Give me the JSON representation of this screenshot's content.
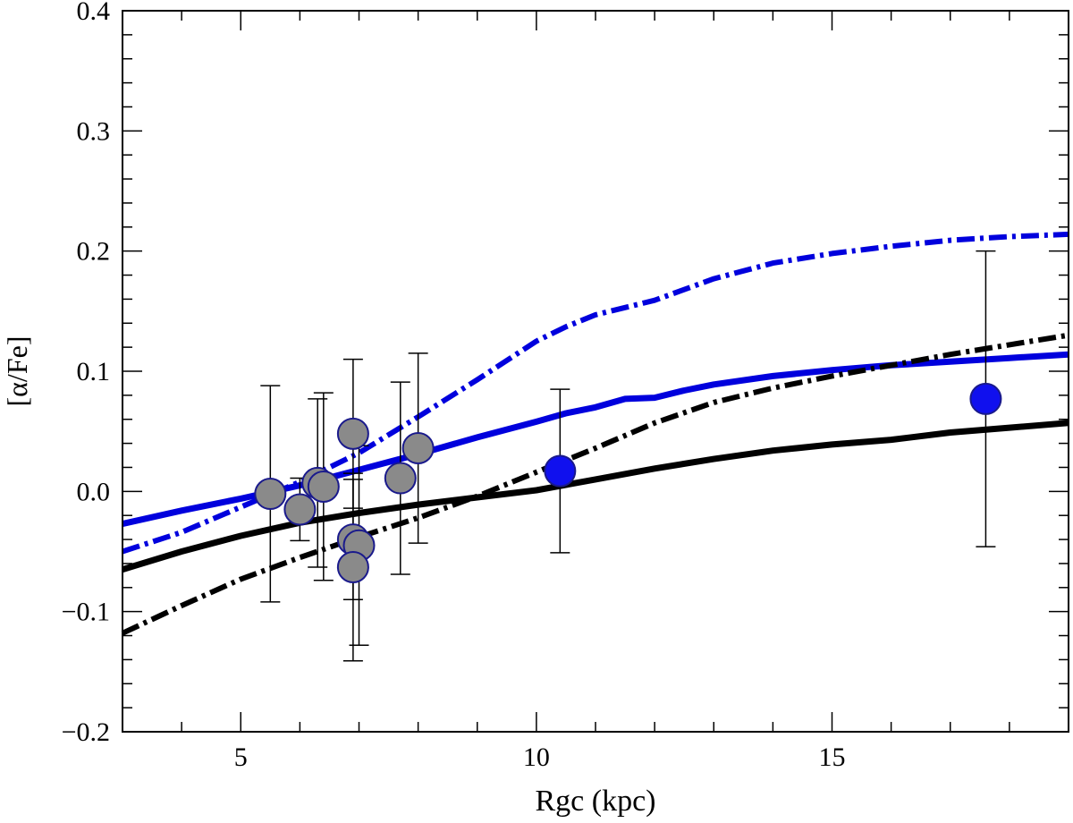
{
  "chart_data": {
    "type": "scatter",
    "title": "",
    "xlabel": "Rgc (kpc)",
    "ylabel": "[α/Fe]",
    "xlim": [
      3,
      19
    ],
    "ylim": [
      -0.2,
      0.4
    ],
    "x_ticks": [
      5,
      10,
      15
    ],
    "x_tick_labels": [
      "5",
      "10",
      "15"
    ],
    "y_ticks": [
      -0.2,
      -0.1,
      0.0,
      0.1,
      0.2,
      0.3,
      0.4
    ],
    "y_tick_labels": [
      "−0.2",
      "−0.1",
      "0.0",
      "0.1",
      "0.2",
      "0.3",
      "0.4"
    ],
    "grid": false,
    "colors": {
      "blue": "#0000dd",
      "black": "#000000",
      "gray_marker": "#8a8a8a",
      "blue_marker": "#1010ee",
      "marker_edge": "#1a1a8c"
    },
    "series": [
      {
        "name": "blue-solid-model",
        "kind": "line",
        "style": "solid",
        "color": "#0000dd",
        "x": [
          3,
          4,
          5,
          6,
          7,
          8,
          9,
          10,
          10.5,
          11,
          11.5,
          12,
          12.5,
          13,
          14,
          15,
          16,
          17,
          18,
          19
        ],
        "y": [
          -0.027,
          -0.016,
          -0.006,
          0.005,
          0.018,
          0.031,
          0.045,
          0.058,
          0.065,
          0.07,
          0.077,
          0.078,
          0.084,
          0.089,
          0.096,
          0.101,
          0.105,
          0.108,
          0.111,
          0.114
        ]
      },
      {
        "name": "blue-dashdot-model",
        "kind": "line",
        "style": "dashdot",
        "color": "#0000dd",
        "x": [
          3,
          4,
          5,
          6,
          7,
          8,
          9,
          10,
          10.5,
          11,
          12,
          13,
          14,
          15,
          16,
          17,
          18,
          19
        ],
        "y": [
          -0.05,
          -0.034,
          -0.013,
          0.008,
          0.032,
          0.062,
          0.093,
          0.125,
          0.137,
          0.147,
          0.159,
          0.177,
          0.19,
          0.198,
          0.204,
          0.209,
          0.212,
          0.214
        ]
      },
      {
        "name": "black-solid-model",
        "kind": "line",
        "style": "solid",
        "color": "#000000",
        "x": [
          3,
          4,
          5,
          6,
          7,
          8,
          9,
          10,
          11,
          12,
          13,
          14,
          15,
          16,
          17,
          18,
          19
        ],
        "y": [
          -0.065,
          -0.05,
          -0.037,
          -0.026,
          -0.018,
          -0.011,
          -0.005,
          0.001,
          0.01,
          0.019,
          0.027,
          0.034,
          0.039,
          0.043,
          0.049,
          0.053,
          0.057
        ]
      },
      {
        "name": "black-dashdot-model",
        "kind": "line",
        "style": "dashdot",
        "color": "#000000",
        "x": [
          3,
          4,
          5,
          6,
          7,
          8,
          9,
          10,
          11,
          12,
          13,
          14,
          15,
          16,
          17,
          18,
          19
        ],
        "y": [
          -0.118,
          -0.095,
          -0.073,
          -0.055,
          -0.038,
          -0.022,
          -0.004,
          0.016,
          0.036,
          0.057,
          0.074,
          0.086,
          0.096,
          0.105,
          0.114,
          0.122,
          0.13
        ]
      },
      {
        "name": "gray-clusters",
        "kind": "points",
        "color": "#8a8a8a",
        "points": [
          {
            "x": 5.5,
            "y": -0.002,
            "err": 0.09
          },
          {
            "x": 6.0,
            "y": -0.015,
            "err": 0.026
          },
          {
            "x": 6.3,
            "y": 0.007,
            "err": 0.07
          },
          {
            "x": 6.4,
            "y": 0.004,
            "err": 0.078
          },
          {
            "x": 6.9,
            "y": 0.048,
            "err": 0.062
          },
          {
            "x": 6.9,
            "y": -0.04,
            "err": 0.05
          },
          {
            "x": 7.0,
            "y": -0.045,
            "err": 0.083
          },
          {
            "x": 6.9,
            "y": -0.063,
            "err": 0.078
          },
          {
            "x": 7.7,
            "y": 0.011,
            "err": 0.08
          },
          {
            "x": 8.0,
            "y": 0.036,
            "err": 0.079
          }
        ]
      },
      {
        "name": "blue-clusters",
        "kind": "points",
        "color": "#1010ee",
        "points": [
          {
            "x": 10.4,
            "y": 0.017,
            "err": 0.068
          },
          {
            "x": 17.6,
            "y": 0.077,
            "err": 0.123
          }
        ]
      }
    ]
  }
}
